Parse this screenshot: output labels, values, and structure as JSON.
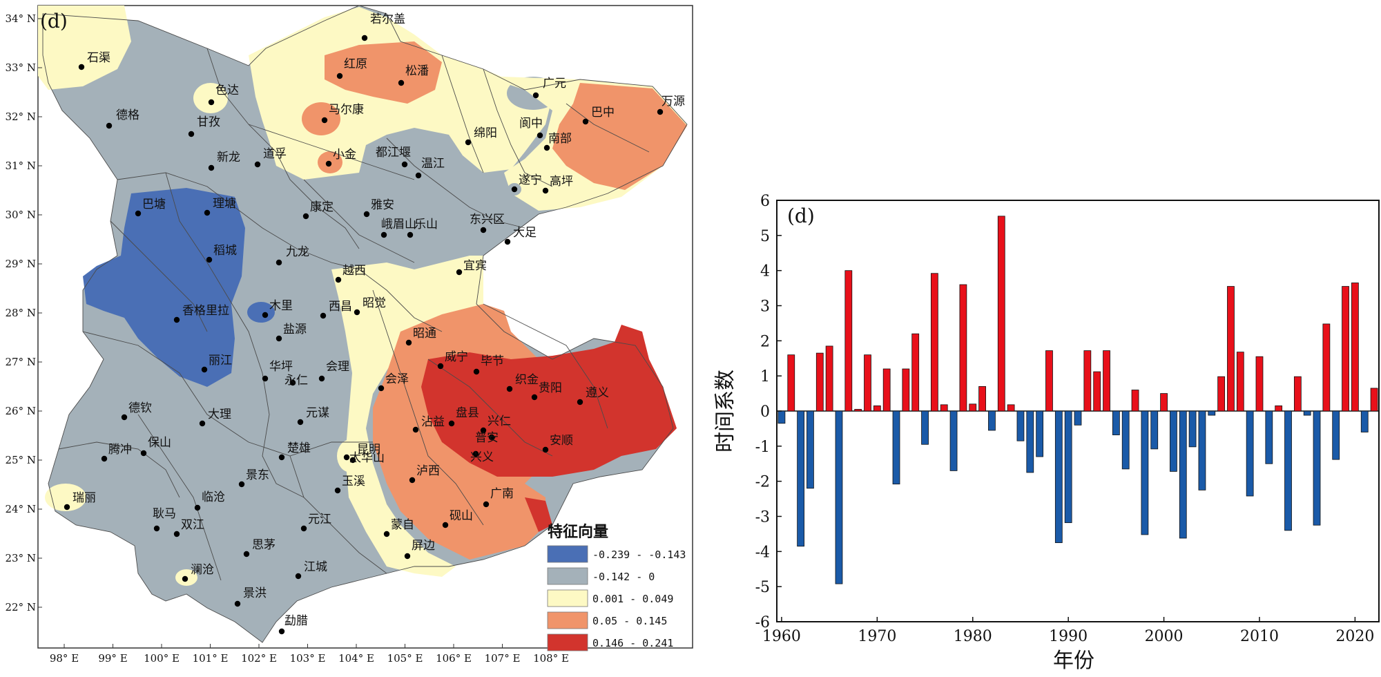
{
  "map": {
    "panel_label": "(d)",
    "legend": {
      "title": "特征向量",
      "items": [
        {
          "label": "-0.239 - -0.143",
          "color": "#4a6fb5"
        },
        {
          "label": "-0.142 - 0",
          "color": "#a4b1b9"
        },
        {
          "label": "0.001 - 0.049",
          "color": "#fdf9c4"
        },
        {
          "label": "0.05 - 0.145",
          "color": "#f0946a"
        },
        {
          "label": "0.146 - 0.241",
          "color": "#d2342d"
        }
      ]
    },
    "lon_ticks": [
      "98° E",
      "99° E",
      "100° E",
      "101° E",
      "102° E",
      "103° E",
      "104° E",
      "105° E",
      "106° E",
      "107° E",
      "108° E"
    ],
    "lat_ticks": [
      "34° N",
      "33° N",
      "32° N",
      "31° N",
      "30° N",
      "29° N",
      "28° N",
      "27° N",
      "26° N",
      "25° N",
      "24° N",
      "23° N",
      "22° N"
    ],
    "stations": [
      "若尔盖",
      "石渠",
      "红原",
      "松潘",
      "色达",
      "马尔康",
      "德格",
      "甘孜",
      "广元",
      "巴中",
      "万源",
      "阆中",
      "南部",
      "绵阳",
      "新龙",
      "道孚",
      "小金",
      "都江堰",
      "温江",
      "遂宁",
      "高坪",
      "巴塘",
      "理塘",
      "康定",
      "雅安",
      "峨眉山",
      "乐山",
      "东兴区",
      "大足",
      "稻城",
      "九龙",
      "越西",
      "宜宾",
      "香格里拉",
      "木里",
      "西昌",
      "昭觉",
      "盐源",
      "昭通",
      "丽江",
      "威宁",
      "华坪",
      "会理",
      "永仁",
      "元谋",
      "会泽",
      "毕节",
      "织金",
      "贵阳",
      "遵义",
      "大理",
      "沾益",
      "盘县",
      "兴仁",
      "兴义",
      "普安",
      "安顺",
      "德钦",
      "腾冲",
      "保山",
      "昆明",
      "太华山",
      "楚雄",
      "玉溪",
      "泸西",
      "景东",
      "临沧",
      "广南",
      "元江",
      "砚山",
      "耿马",
      "双江",
      "蒙自",
      "屏边",
      "思茅",
      "澜沧",
      "江城",
      "瑞丽",
      "景洪",
      "勐腊"
    ]
  },
  "chart_data": {
    "type": "bar",
    "panel_label": "(d)",
    "title": "",
    "xlabel": "年份",
    "ylabel": "时间系数",
    "xlim": [
      1960,
      2022.5
    ],
    "ylim": [
      -6,
      6
    ],
    "x_ticks": [
      1960,
      1970,
      1980,
      1990,
      2000,
      2010,
      2020
    ],
    "y_ticks": [
      -6,
      -5,
      -4,
      -3,
      -2,
      -1,
      0,
      1,
      2,
      3,
      4,
      5,
      6
    ],
    "positive_color": "#e8101a",
    "negative_color": "#1a5aa8",
    "x": [
      1960,
      1961,
      1962,
      1963,
      1964,
      1965,
      1966,
      1967,
      1968,
      1969,
      1970,
      1971,
      1972,
      1973,
      1974,
      1975,
      1976,
      1977,
      1978,
      1979,
      1980,
      1981,
      1982,
      1983,
      1984,
      1985,
      1986,
      1987,
      1988,
      1989,
      1990,
      1991,
      1992,
      1993,
      1994,
      1995,
      1996,
      1997,
      1998,
      1999,
      2000,
      2001,
      2002,
      2003,
      2004,
      2005,
      2006,
      2007,
      2008,
      2009,
      2010,
      2011,
      2012,
      2013,
      2014,
      2015,
      2016,
      2017,
      2018,
      2019,
      2020,
      2021,
      2022
    ],
    "values": [
      -0.35,
      1.6,
      -3.85,
      -2.2,
      1.65,
      1.85,
      -4.92,
      4.0,
      0.05,
      1.6,
      0.15,
      1.2,
      -2.08,
      1.2,
      2.2,
      -0.95,
      3.92,
      0.18,
      -1.7,
      3.6,
      0.2,
      0.7,
      -0.55,
      5.55,
      0.18,
      -0.85,
      -1.75,
      -1.3,
      1.72,
      -3.75,
      -3.18,
      -0.4,
      1.72,
      1.12,
      1.72,
      -0.68,
      -1.65,
      0.6,
      -3.52,
      -1.08,
      0.5,
      -1.72,
      -3.62,
      -1.02,
      -2.25,
      -0.12,
      0.98,
      3.55,
      1.68,
      -2.42,
      1.55,
      -1.5,
      0.15,
      -3.4,
      0.98,
      -0.12,
      -3.25,
      2.48,
      -1.38,
      3.55,
      3.65,
      -0.6,
      0.65
    ]
  }
}
